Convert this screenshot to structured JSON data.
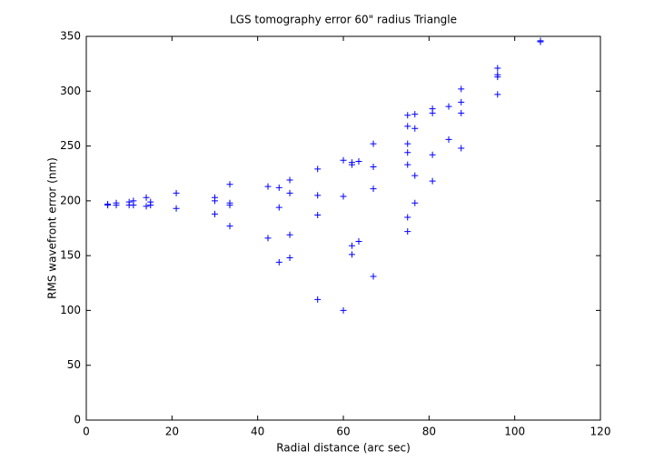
{
  "chart_data": {
    "type": "scatter",
    "title": "LGS tomography error 60\" radius Triangle",
    "xlabel": "Radial distance (arc sec)",
    "ylabel": "RMS wavefront error (nm)",
    "color": "#0000ff",
    "x": [
      5,
      5,
      7,
      7,
      10,
      10,
      11,
      11,
      14,
      14,
      15,
      15,
      21,
      21,
      30,
      30,
      30,
      33.5,
      33.5,
      33.5,
      33.5,
      42.4,
      42.4,
      45,
      45,
      45,
      47.5,
      47.5,
      47.5,
      47.5,
      54,
      54,
      54,
      54,
      60,
      60,
      60,
      62,
      62,
      62,
      62,
      63.6,
      63.6,
      67,
      67,
      67,
      67,
      75,
      75,
      75,
      75,
      75,
      75,
      75,
      76.7,
      76.7,
      76.7,
      76.7,
      80.8,
      80.8,
      80.8,
      80.8,
      84.6,
      84.6,
      87.5,
      87.5,
      87.5,
      87.5,
      96,
      96,
      96,
      96,
      106,
      106
    ],
    "values": [
      197,
      196,
      198,
      196,
      199,
      196,
      200,
      196,
      203,
      195,
      199,
      196,
      207,
      193,
      203,
      200,
      188,
      215,
      198,
      196,
      177,
      213,
      166,
      212,
      194,
      144,
      219,
      207,
      169,
      148,
      229,
      205,
      187,
      110,
      237,
      204,
      100,
      235,
      233,
      159,
      151,
      236,
      163,
      252,
      231,
      211,
      131,
      278,
      268,
      252,
      244,
      233,
      185,
      172,
      279,
      266,
      223,
      198,
      284,
      280,
      242,
      218,
      286,
      256,
      302,
      290,
      280,
      248,
      321,
      315,
      313,
      297,
      345,
      346
    ],
    "xlim": [
      0,
      120
    ],
    "xticks": [
      0,
      20,
      40,
      60,
      80,
      100,
      120
    ],
    "ylim": [
      0,
      350
    ],
    "yticks": [
      0,
      50,
      100,
      150,
      200,
      250,
      300,
      350
    ]
  }
}
